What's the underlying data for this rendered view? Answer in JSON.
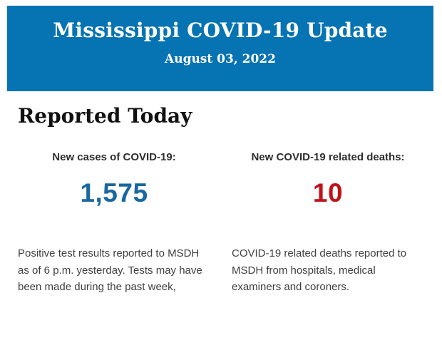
{
  "page": {
    "background_color": "#ffffff"
  },
  "header": {
    "title": "Mississippi COVID-19 Update",
    "date": "August 03, 2022",
    "background_color": "#0673b2",
    "text_color": "#ffffff"
  },
  "section": {
    "heading": "Reported Today"
  },
  "stats": {
    "cases": {
      "label": "New cases of COVID-19:",
      "value": "1,575",
      "value_color": "#19689f",
      "description": "Positive test results reported to MSDH as of 6 p.m. yesterday. Tests may have been made during the past week,"
    },
    "deaths": {
      "label": "New COVID-19 related deaths:",
      "value": "10",
      "value_color": "#c1121c",
      "description": "COVID-19 related deaths reported to MSDH from hospitals, medical examiners and coroners."
    }
  }
}
